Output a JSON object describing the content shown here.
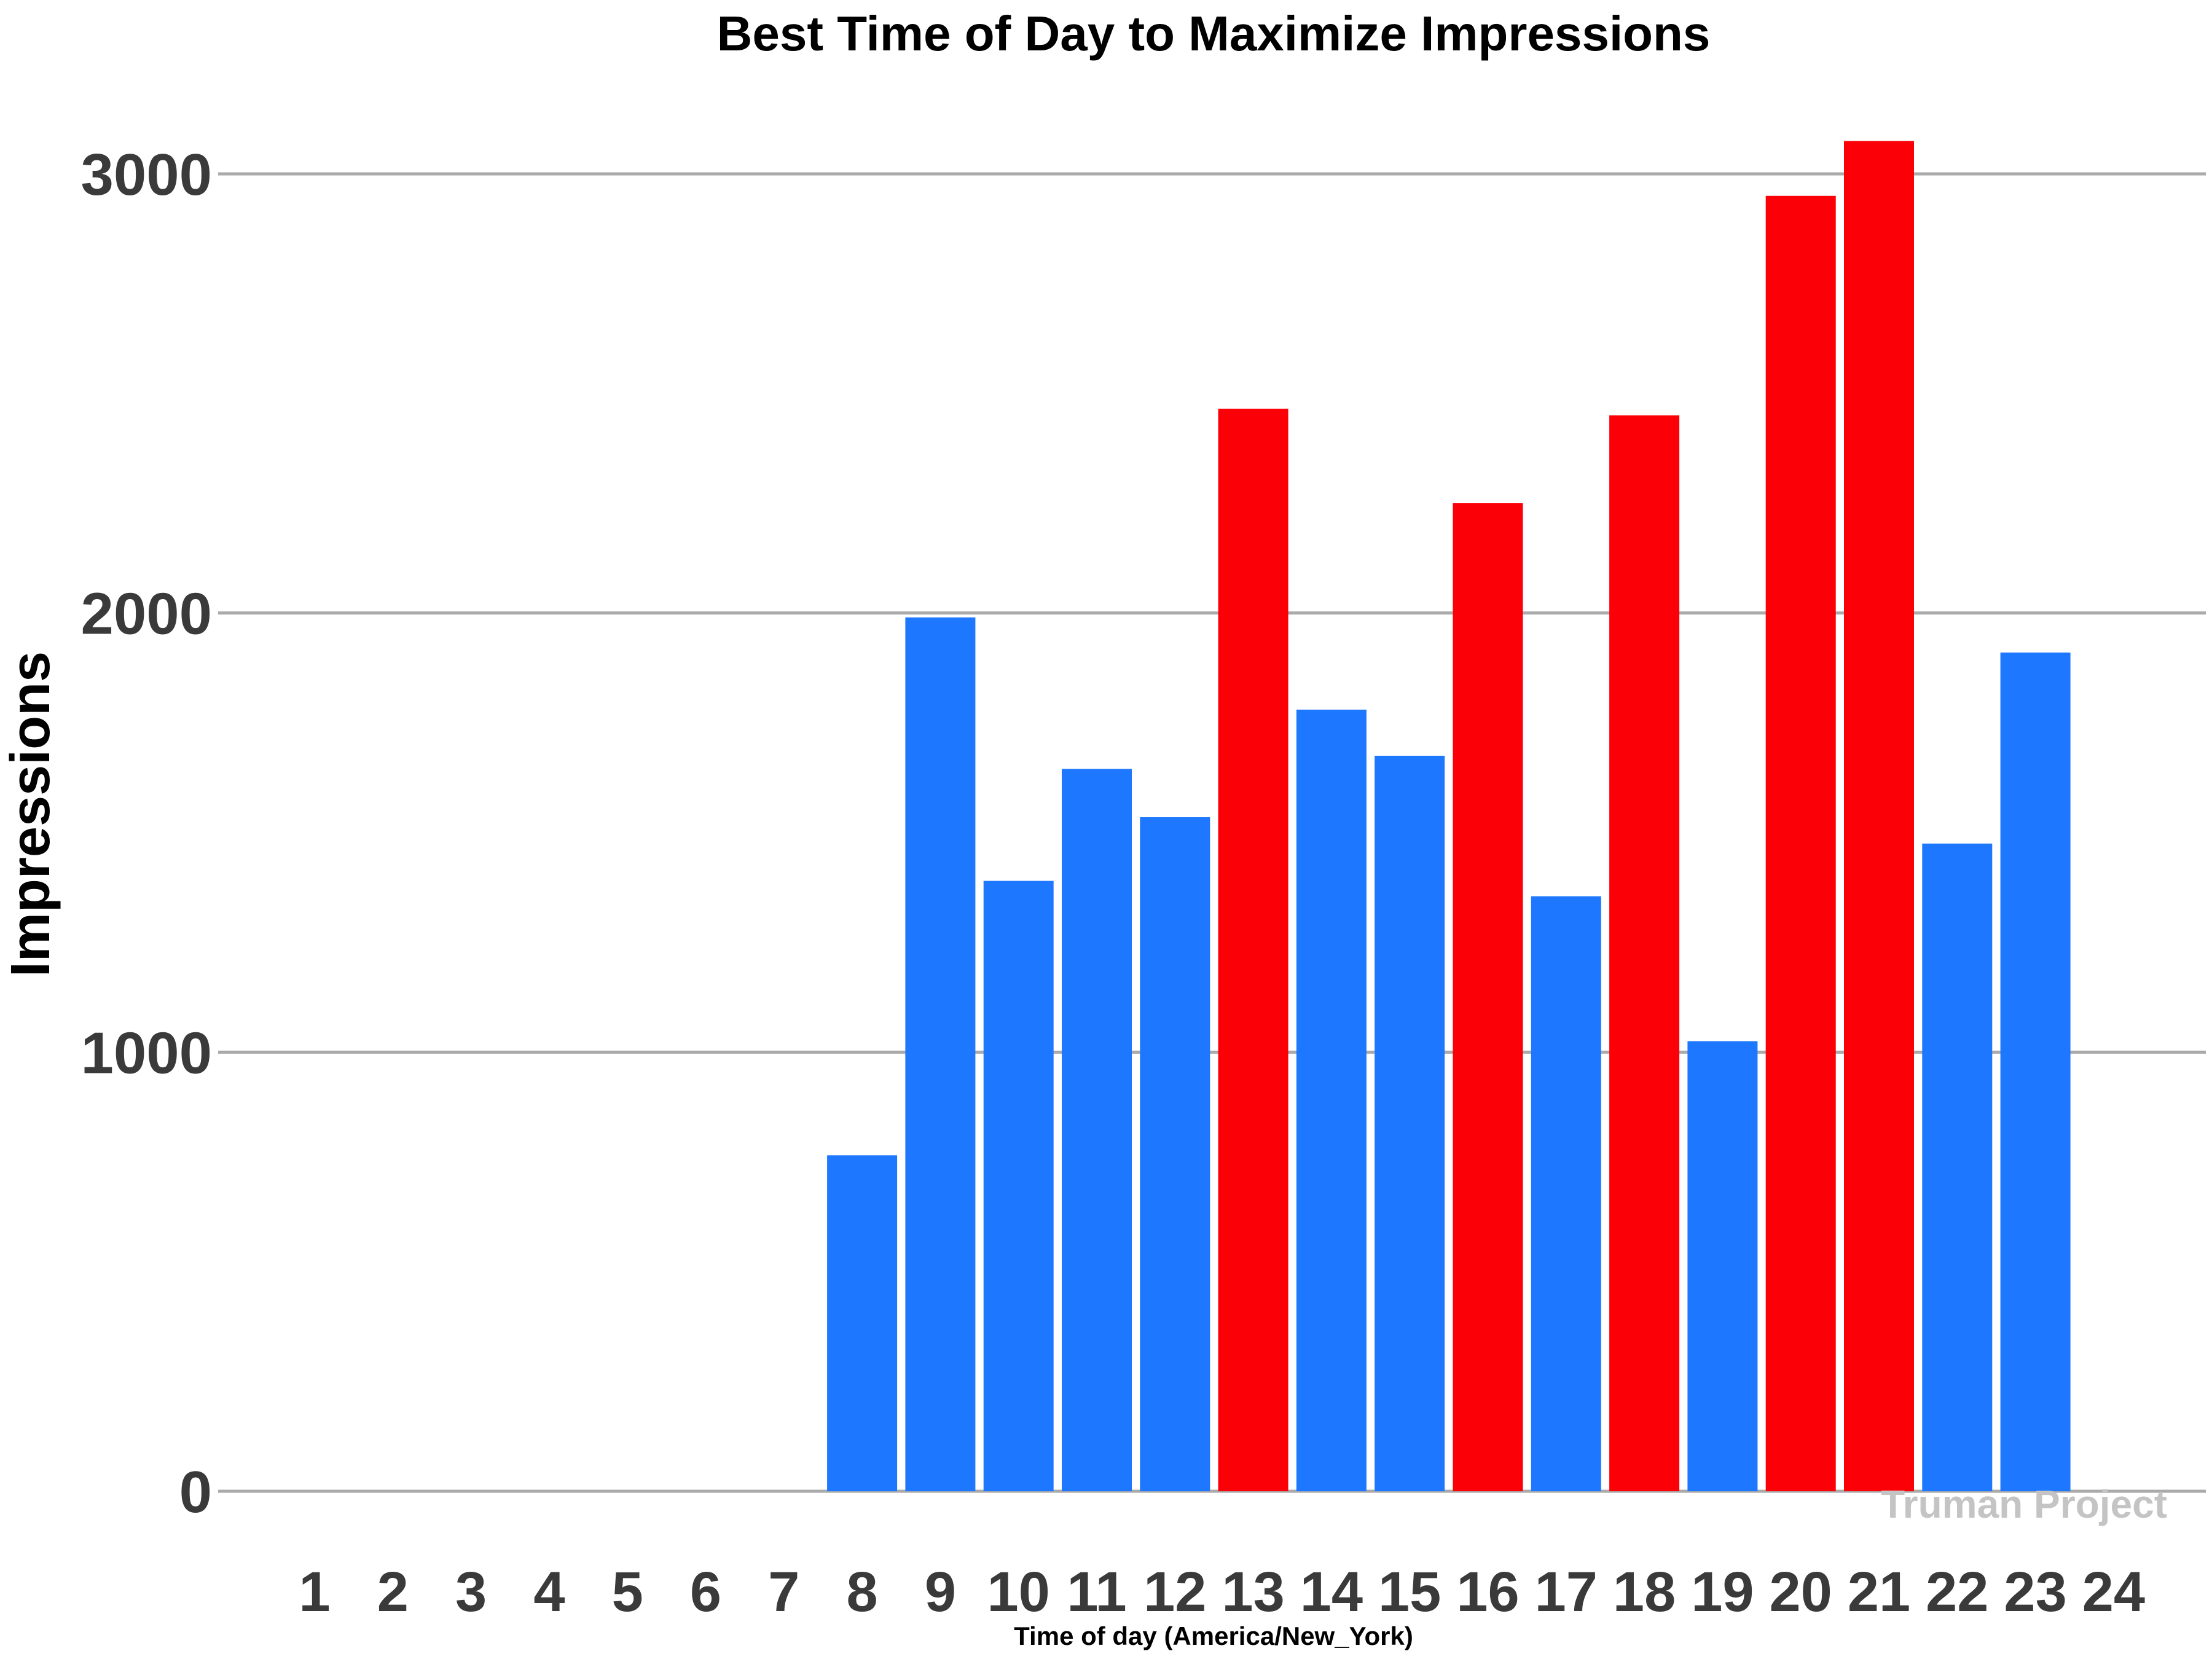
{
  "chart_data": {
    "type": "bar",
    "title": "Best Time of Day to Maximize Impressions",
    "xlabel": "Time of day (America/New_York)",
    "ylabel": "Impressions",
    "watermark": "Truman Project",
    "categories": [
      "1",
      "2",
      "3",
      "4",
      "5",
      "6",
      "7",
      "8",
      "9",
      "10",
      "11",
      "12",
      "13",
      "14",
      "15",
      "16",
      "17",
      "18",
      "19",
      "20",
      "21",
      "22",
      "23",
      "24"
    ],
    "values": [
      0,
      0,
      0,
      0,
      0,
      0,
      0,
      765,
      1990,
      1390,
      1645,
      1535,
      2465,
      1780,
      1675,
      2250,
      1355,
      2450,
      1025,
      2950,
      3075,
      1475,
      1910,
      0
    ],
    "highlight": [
      false,
      false,
      false,
      false,
      false,
      false,
      false,
      false,
      false,
      false,
      false,
      false,
      true,
      false,
      false,
      true,
      false,
      true,
      false,
      true,
      true,
      false,
      false,
      false
    ],
    "yticks": [
      0,
      1000,
      2000,
      3000
    ],
    "ylim": [
      -100,
      3200
    ],
    "grid": "horizontal",
    "colors": {
      "normal": "#1e78ff",
      "highlight": "#fb0007"
    }
  }
}
